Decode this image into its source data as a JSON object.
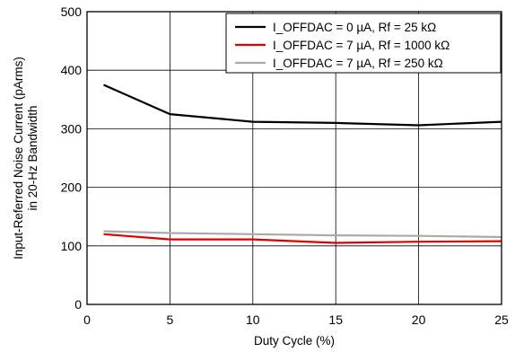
{
  "chart_data": {
    "type": "line",
    "title": "",
    "xlabel": "Duty Cycle (%)",
    "ylabel_lines": [
      "Input-Referred Noise Current (pArms)",
      "in 20-Hz Bandwidth"
    ],
    "xlim": [
      0,
      25
    ],
    "ylim": [
      0,
      500
    ],
    "x_ticks": [
      0,
      5,
      10,
      15,
      20,
      25
    ],
    "y_ticks": [
      0,
      100,
      200,
      300,
      400,
      500
    ],
    "grid": true,
    "legend_position": "top-right",
    "series": [
      {
        "name": "I_OFFDAC = 0 µA, Rf = 25 kΩ",
        "color": "#000000",
        "x": [
          1,
          5,
          10,
          15,
          20,
          25
        ],
        "y": [
          375,
          325,
          312,
          310,
          306,
          312
        ]
      },
      {
        "name": "I_OFFDAC = 7 µA, Rf = 1000 kΩ",
        "color": "#e00000",
        "x": [
          1,
          5,
          10,
          15,
          20,
          25
        ],
        "y": [
          120,
          111,
          111,
          105,
          107,
          108
        ]
      },
      {
        "name": "I_OFFDAC = 7 µA, Rf = 250 kΩ",
        "color": "#aaaaaa",
        "x": [
          1,
          5,
          10,
          15,
          20,
          25
        ],
        "y": [
          125,
          122,
          120,
          118,
          117,
          115
        ]
      }
    ]
  }
}
